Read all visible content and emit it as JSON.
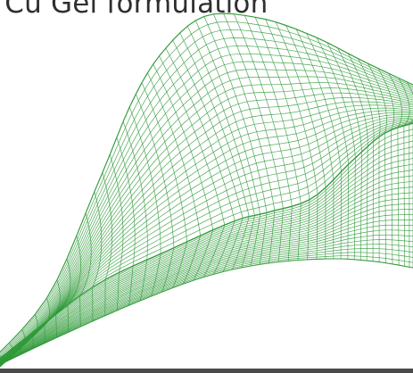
{
  "slide": {
    "title": "o Cu Gel formulation"
  },
  "graphic": {
    "type": "wireframe-surface",
    "mesh_color": "#2f9a38",
    "background": "#ffffff",
    "bottom_bar_color": "#4a4a4a"
  }
}
